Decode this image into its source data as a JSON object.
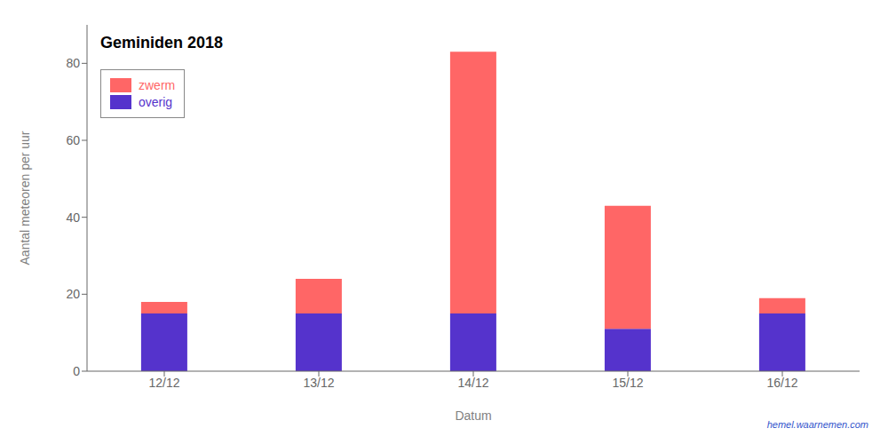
{
  "chart_data": {
    "type": "bar",
    "stacked": true,
    "title": "Geminiden 2018",
    "x_label": "Datum",
    "y_label": "Aantal meteoren per uur",
    "categories": [
      "12/12",
      "13/12",
      "14/12",
      "15/12",
      "16/12"
    ],
    "series": [
      {
        "name": "overig",
        "color": "#5533CC",
        "values": [
          15,
          15,
          15,
          11,
          15
        ]
      },
      {
        "name": "zwerm",
        "color": "#FF6666",
        "values": [
          3,
          9,
          68,
          32,
          4
        ]
      }
    ],
    "ylim": [
      0,
      90
    ],
    "yticks": [
      0,
      20,
      40,
      60,
      80
    ],
    "grid": false,
    "legend": "upper left",
    "annotations": [
      "hemel.waarnemen.com"
    ]
  }
}
